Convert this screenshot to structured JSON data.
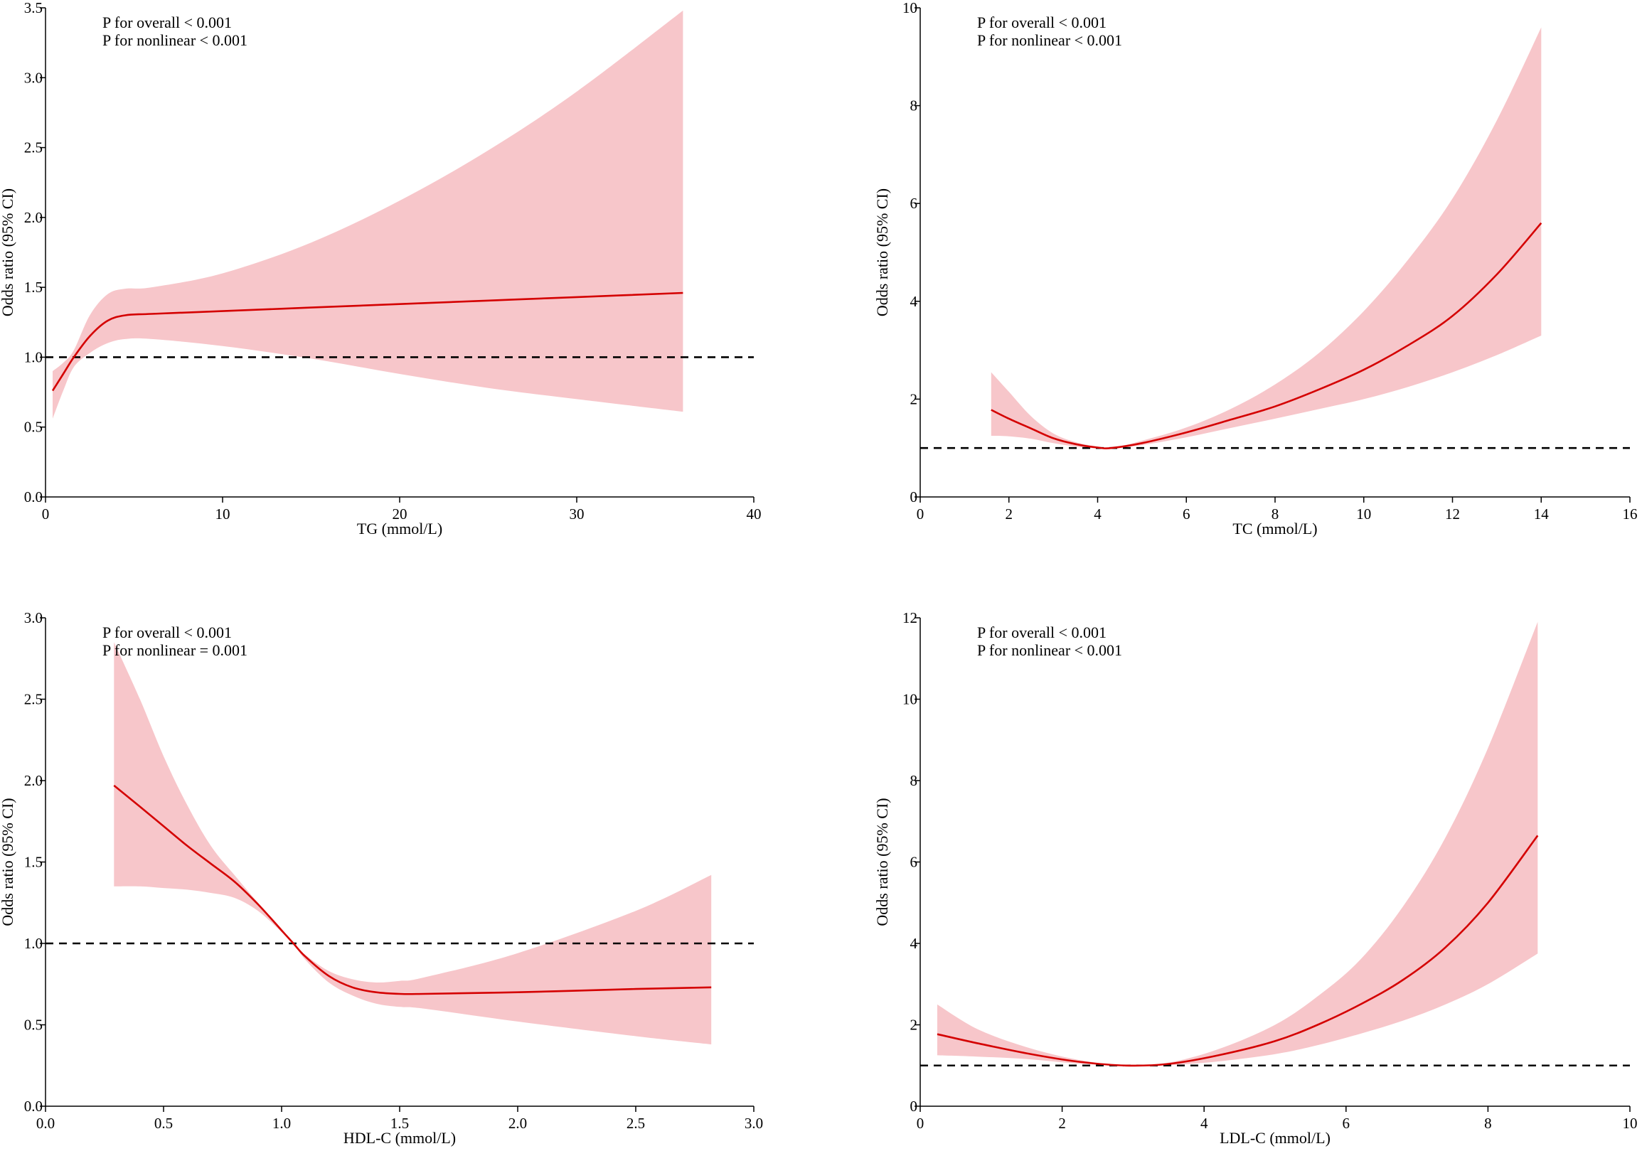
{
  "colors": {
    "ci_band": "#f7c6ca",
    "curve": "#d40000",
    "reference": "#000000",
    "axis": "#000000"
  },
  "chart_data": [
    {
      "type": "line",
      "title": "",
      "xlabel": "TG (mmol/L)",
      "ylabel": "Odds ratio (95% CI)",
      "xlim": [
        0,
        40
      ],
      "ylim": [
        0,
        3.5
      ],
      "xticks": [
        0,
        10,
        20,
        30,
        40
      ],
      "xtick_labels": [
        "0",
        "10",
        "20",
        "30",
        "40"
      ],
      "yticks": [
        0,
        0.5,
        1,
        1.5,
        2,
        2.5,
        3,
        3.5
      ],
      "ytick_labels": [
        "0.0",
        "0.5",
        "1.0",
        "1.5",
        "2.0",
        "2.5",
        "3.0",
        "3.5"
      ],
      "reference_line": 1.0,
      "annotations": [
        "P for overall < 0.001",
        "P for nonlinear < 0.001"
      ],
      "series": [
        {
          "name": "Odds ratio",
          "x": [
            0.4,
            1,
            1.6,
            2.5,
            3.5,
            4.5,
            6,
            10,
            15,
            20,
            25,
            30,
            36
          ],
          "y": [
            0.76,
            0.88,
            1.0,
            1.15,
            1.26,
            1.3,
            1.31,
            1.33,
            1.355,
            1.38,
            1.405,
            1.43,
            1.46
          ]
        },
        {
          "name": "95% CI upper",
          "x": [
            0.4,
            1,
            1.6,
            2.5,
            3.5,
            4.5,
            6,
            10,
            15,
            20,
            25,
            30,
            36
          ],
          "y": [
            0.9,
            0.96,
            1.05,
            1.3,
            1.45,
            1.49,
            1.5,
            1.6,
            1.82,
            2.12,
            2.48,
            2.9,
            3.48
          ]
        },
        {
          "name": "95% CI lower",
          "x": [
            0.4,
            1,
            1.6,
            2.5,
            3.5,
            4.5,
            6,
            10,
            15,
            20,
            25,
            30,
            36
          ],
          "y": [
            0.56,
            0.76,
            0.93,
            1.03,
            1.1,
            1.13,
            1.13,
            1.08,
            0.99,
            0.88,
            0.78,
            0.7,
            0.61
          ]
        }
      ]
    },
    {
      "type": "line",
      "title": "",
      "xlabel": "TC (mmol/L)",
      "ylabel": "Odds ratio (95% CI)",
      "xlim": [
        0,
        16
      ],
      "ylim": [
        0,
        10
      ],
      "xticks": [
        0,
        2,
        4,
        6,
        8,
        10,
        12,
        14,
        16
      ],
      "xtick_labels": [
        "0",
        "2",
        "4",
        "6",
        "8",
        "10",
        "12",
        "14",
        "16"
      ],
      "yticks": [
        0,
        2,
        4,
        6,
        8,
        10
      ],
      "ytick_labels": [
        "0",
        "2",
        "4",
        "6",
        "8",
        "10"
      ],
      "reference_line": 1.0,
      "annotations": [
        "P for overall < 0.001",
        "P for nonlinear < 0.001"
      ],
      "series": [
        {
          "name": "Odds ratio",
          "x": [
            1.6,
            2,
            2.5,
            3,
            3.5,
            4,
            4.3,
            5,
            6,
            7,
            8,
            9,
            10,
            11,
            12,
            13,
            14
          ],
          "y": [
            1.78,
            1.6,
            1.4,
            1.2,
            1.08,
            1.01,
            1.0,
            1.1,
            1.32,
            1.58,
            1.85,
            2.2,
            2.6,
            3.1,
            3.7,
            4.55,
            5.6
          ]
        },
        {
          "name": "95% CI upper",
          "x": [
            1.6,
            2,
            2.5,
            3,
            3.5,
            4,
            4.3,
            5,
            6,
            7,
            8,
            9,
            10,
            11,
            12,
            13,
            14
          ],
          "y": [
            2.55,
            2.15,
            1.65,
            1.3,
            1.12,
            1.03,
            1.0,
            1.15,
            1.42,
            1.8,
            2.3,
            2.95,
            3.8,
            4.85,
            6.1,
            7.7,
            9.6
          ]
        },
        {
          "name": "95% CI lower",
          "x": [
            1.6,
            2,
            2.5,
            3,
            3.5,
            4,
            4.3,
            5,
            6,
            7,
            8,
            9,
            10,
            11,
            12,
            13,
            14
          ],
          "y": [
            1.25,
            1.24,
            1.19,
            1.1,
            1.03,
            0.99,
            1.0,
            1.06,
            1.22,
            1.41,
            1.6,
            1.8,
            2.0,
            2.25,
            2.55,
            2.9,
            3.3
          ]
        }
      ]
    },
    {
      "type": "line",
      "title": "",
      "xlabel": "HDL-C (mmol/L)",
      "ylabel": "Odds ratio (95% CI)",
      "xlim": [
        0,
        3
      ],
      "ylim": [
        0,
        3
      ],
      "xticks": [
        0,
        0.5,
        1,
        1.5,
        2,
        2.5,
        3
      ],
      "xtick_labels": [
        "0.0",
        "0.5",
        "1.0",
        "1.5",
        "2.0",
        "2.5",
        "3.0"
      ],
      "yticks": [
        0,
        0.5,
        1,
        1.5,
        2,
        2.5,
        3
      ],
      "ytick_labels": [
        "0.0",
        "0.5",
        "1.0",
        "1.5",
        "2.0",
        "2.5",
        "3.0"
      ],
      "reference_line": 1.0,
      "annotations": [
        "P for overall < 0.001",
        "P for nonlinear = 0.001"
      ],
      "series": [
        {
          "name": "Odds ratio",
          "x": [
            0.29,
            0.4,
            0.5,
            0.6,
            0.7,
            0.8,
            0.9,
            1.0,
            1.05,
            1.1,
            1.2,
            1.3,
            1.4,
            1.5,
            1.6,
            2.0,
            2.5,
            2.82
          ],
          "y": [
            1.97,
            1.84,
            1.72,
            1.6,
            1.49,
            1.38,
            1.24,
            1.08,
            1.0,
            0.92,
            0.8,
            0.73,
            0.7,
            0.69,
            0.69,
            0.7,
            0.72,
            0.73
          ]
        },
        {
          "name": "95% CI upper",
          "x": [
            0.29,
            0.4,
            0.5,
            0.6,
            0.7,
            0.8,
            0.9,
            1.0,
            1.05,
            1.1,
            1.2,
            1.3,
            1.4,
            1.5,
            1.6,
            2.0,
            2.5,
            2.82
          ],
          "y": [
            2.85,
            2.5,
            2.15,
            1.85,
            1.6,
            1.42,
            1.25,
            1.09,
            1.0,
            0.93,
            0.83,
            0.78,
            0.76,
            0.77,
            0.79,
            0.94,
            1.2,
            1.42
          ]
        },
        {
          "name": "95% CI lower",
          "x": [
            0.29,
            0.4,
            0.5,
            0.6,
            0.7,
            0.8,
            0.9,
            1.0,
            1.05,
            1.1,
            1.2,
            1.3,
            1.4,
            1.5,
            1.6,
            2.0,
            2.5,
            2.82
          ],
          "y": [
            1.35,
            1.35,
            1.34,
            1.33,
            1.31,
            1.28,
            1.2,
            1.07,
            1.0,
            0.9,
            0.76,
            0.68,
            0.63,
            0.61,
            0.6,
            0.52,
            0.43,
            0.38
          ]
        }
      ]
    },
    {
      "type": "line",
      "title": "",
      "xlabel": "LDL-C (mmol/L)",
      "ylabel": "Odds ratio (95% CI)",
      "xlim": [
        0,
        10
      ],
      "ylim": [
        0,
        12
      ],
      "xticks": [
        0,
        2,
        4,
        6,
        8,
        10
      ],
      "xtick_labels": [
        "0",
        "2",
        "4",
        "6",
        "8",
        "10"
      ],
      "yticks": [
        0,
        2,
        4,
        6,
        8,
        10,
        12
      ],
      "ytick_labels": [
        "0",
        "2",
        "4",
        "6",
        "8",
        "10",
        "12"
      ],
      "reference_line": 1.0,
      "annotations": [
        "P for overall < 0.001",
        "P for nonlinear < 0.001"
      ],
      "series": [
        {
          "name": "Odds ratio",
          "x": [
            0.24,
            0.8,
            1.5,
            2.2,
            2.9,
            3.5,
            4.2,
            5,
            5.6,
            6.2,
            6.8,
            7.4,
            8,
            8.7
          ],
          "y": [
            1.77,
            1.55,
            1.3,
            1.1,
            1.0,
            1.04,
            1.25,
            1.6,
            2.0,
            2.5,
            3.1,
            3.9,
            5.0,
            6.65
          ]
        },
        {
          "name": "95% CI upper",
          "x": [
            0.24,
            0.8,
            1.5,
            2.2,
            2.9,
            3.5,
            4.2,
            5,
            5.6,
            6.2,
            6.8,
            7.4,
            8,
            8.7
          ],
          "y": [
            2.5,
            1.9,
            1.45,
            1.15,
            1.0,
            1.07,
            1.4,
            2.0,
            2.7,
            3.6,
            4.9,
            6.6,
            8.8,
            11.9
          ]
        },
        {
          "name": "95% CI lower",
          "x": [
            0.24,
            0.8,
            1.5,
            2.2,
            2.9,
            3.5,
            4.2,
            5,
            5.6,
            6.2,
            6.8,
            7.4,
            8,
            8.7
          ],
          "y": [
            1.25,
            1.22,
            1.16,
            1.05,
            1.0,
            1.01,
            1.1,
            1.28,
            1.5,
            1.78,
            2.1,
            2.5,
            3.0,
            3.75
          ]
        }
      ]
    }
  ]
}
